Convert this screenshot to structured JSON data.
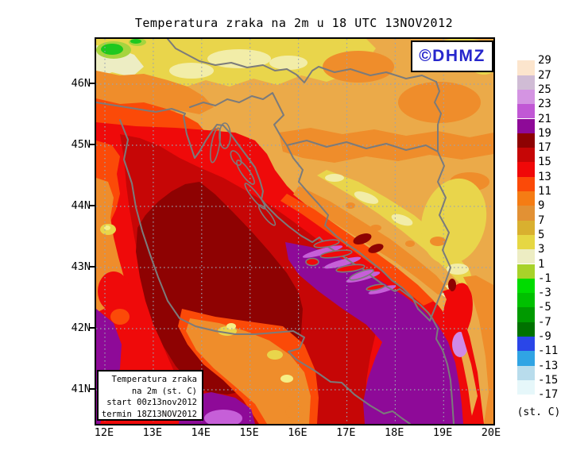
{
  "title": "Temperatura zraka na 2m u 18 UTC 13NOV2012",
  "watermark": {
    "label": "©DHMZ",
    "color": "#2626cc"
  },
  "info_box": {
    "lines": [
      "Temperatura zraka",
      "na 2m (st. C)",
      "start 00z13nov2012",
      "termin 18Z13NOV2012"
    ]
  },
  "axes": {
    "lat": [
      "46N",
      "45N",
      "44N",
      "43N",
      "42N",
      "41N"
    ],
    "lon": [
      "12E",
      "13E",
      "14E",
      "15E",
      "16E",
      "17E",
      "18E",
      "19E",
      "20E"
    ]
  },
  "legend": {
    "unit": "(st. C)",
    "entries": [
      {
        "label": "29",
        "color": "#fce5cd"
      },
      {
        "label": "27",
        "color": "#d0bcd5"
      },
      {
        "label": "25",
        "color": "#d494e2"
      },
      {
        "label": "23",
        "color": "#c158d5"
      },
      {
        "label": "21",
        "color": "#8e0a98"
      },
      {
        "label": "19",
        "color": "#8e0202"
      },
      {
        "label": "17",
        "color": "#c60606"
      },
      {
        "label": "15",
        "color": "#f00808"
      },
      {
        "label": "13",
        "color": "#fb4a08"
      },
      {
        "label": "11",
        "color": "#f57c14"
      },
      {
        "label": "9",
        "color": "#e29134"
      },
      {
        "label": "7",
        "color": "#d9b02f"
      },
      {
        "label": "5",
        "color": "#e6d743"
      },
      {
        "label": "3",
        "color": "#ededc3"
      },
      {
        "label": "1",
        "color": "#a8d22a"
      },
      {
        "label": "-1",
        "color": "#00dc00"
      },
      {
        "label": "-3",
        "color": "#00c000"
      },
      {
        "label": "-5",
        "color": "#009a00"
      },
      {
        "label": "-7",
        "color": "#007200"
      },
      {
        "label": "-9",
        "color": "#2a46e8"
      },
      {
        "label": "-11",
        "color": "#30a4e4"
      },
      {
        "label": "-13",
        "color": "#b8dcec"
      },
      {
        "label": "-15",
        "color": "#e6f7fa"
      },
      {
        "label": "-17",
        "color": "#ffffff"
      }
    ]
  }
}
